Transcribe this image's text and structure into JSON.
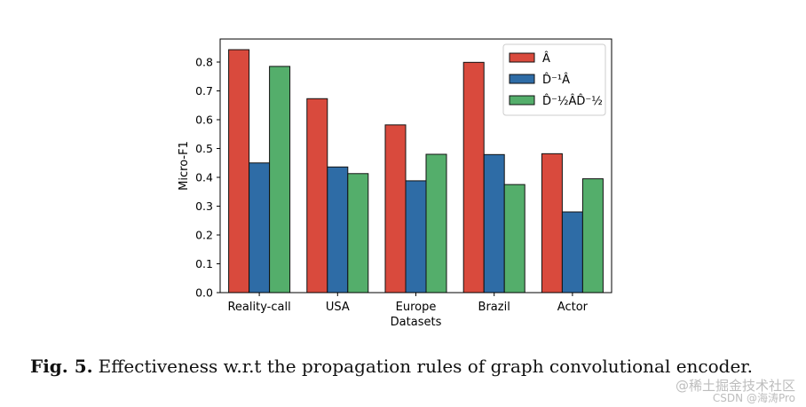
{
  "chart_data": {
    "type": "bar",
    "categories": [
      "Reality-call",
      "USA",
      "Europe",
      "Brazil",
      "Actor"
    ],
    "series": [
      {
        "name": "Â",
        "color": "#d94a3d",
        "values": [
          0.843,
          0.673,
          0.582,
          0.799,
          0.482
        ]
      },
      {
        "name": "D̂⁻¹Â",
        "color": "#2e6ca6",
        "values": [
          0.45,
          0.436,
          0.388,
          0.479,
          0.28
        ]
      },
      {
        "name": "D̂⁻½ÂD̂⁻½",
        "color": "#54ae6b",
        "values": [
          0.785,
          0.413,
          0.48,
          0.375,
          0.395
        ]
      }
    ],
    "xlabel": "Datasets",
    "ylabel": "Micro-F1",
    "ylim": [
      0,
      0.88
    ],
    "yticks": [
      0.0,
      0.1,
      0.2,
      0.3,
      0.4,
      0.5,
      0.6,
      0.7,
      0.8
    ],
    "ytick_labels": [
      "0.0",
      "0.1",
      "0.2",
      "0.3",
      "0.4",
      "0.5",
      "0.6",
      "0.7",
      "0.8"
    ],
    "legend_position": "top-right",
    "grid": false
  },
  "caption": {
    "label": "Fig. 5.",
    "text": "Effectiveness w.r.t the propagation rules of graph convolutional encoder."
  },
  "watermark": {
    "line1": "@稀土掘金技术社区",
    "line2": "CSDN @海涛Pro"
  }
}
